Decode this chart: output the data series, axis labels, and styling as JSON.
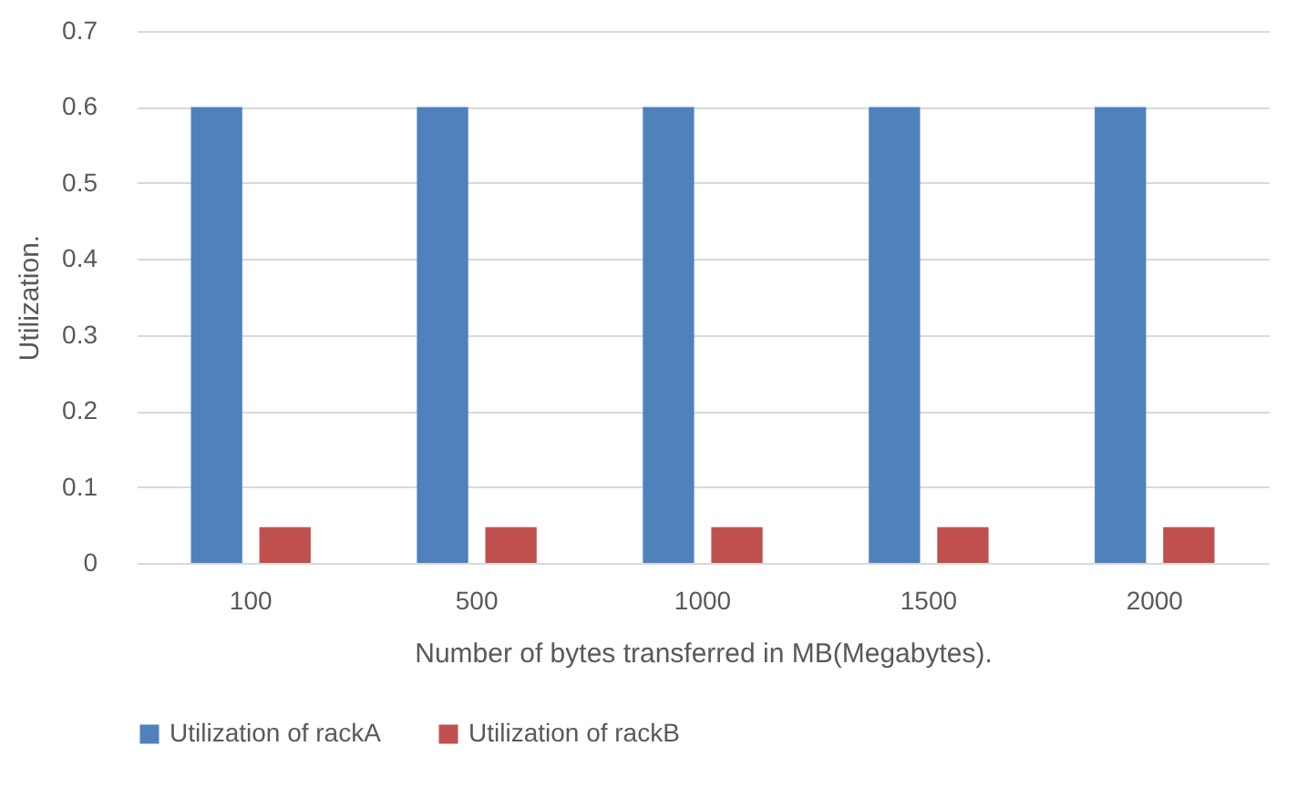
{
  "chart_data": {
    "type": "bar",
    "xlabel": "Number of bytes transferred in MB(Megabytes).",
    "ylabel": "Utilization.",
    "categories": [
      "100",
      "500",
      "1000",
      "1500",
      "2000"
    ],
    "series": [
      {
        "name": "Utilization of rackA",
        "color": "#4f81bd",
        "values": [
          0.6,
          0.6,
          0.6,
          0.6,
          0.6
        ]
      },
      {
        "name": "Utilization of rackB",
        "color": "#c0504d",
        "values": [
          0.047,
          0.047,
          0.047,
          0.047,
          0.047
        ]
      }
    ],
    "ylim": [
      0,
      0.7
    ],
    "yticks": [
      0,
      0.1,
      0.2,
      0.3,
      0.4,
      0.5,
      0.6,
      0.7
    ],
    "grid": "y",
    "legend": "bottom"
  }
}
